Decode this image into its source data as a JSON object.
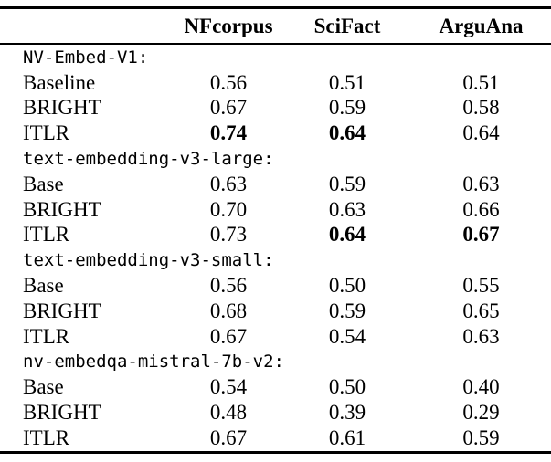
{
  "table": {
    "columns": [
      "",
      "NFcorpus",
      "SciFact",
      "ArguAna"
    ],
    "groups": [
      {
        "name": "NV-Embed-V1:",
        "rows": [
          {
            "label": "Baseline",
            "values": [
              "0.56",
              "0.51",
              "0.51"
            ],
            "bold": [
              false,
              false,
              false
            ]
          },
          {
            "label": "BRIGHT",
            "values": [
              "0.67",
              "0.59",
              "0.58"
            ],
            "bold": [
              false,
              false,
              false
            ]
          },
          {
            "label": "ITLR",
            "values": [
              "0.74",
              "0.64",
              "0.64"
            ],
            "bold": [
              true,
              true,
              false
            ]
          }
        ]
      },
      {
        "name": "text-embedding-v3-large:",
        "rows": [
          {
            "label": "Base",
            "values": [
              "0.63",
              "0.59",
              "0.63"
            ],
            "bold": [
              false,
              false,
              false
            ]
          },
          {
            "label": "BRIGHT",
            "values": [
              "0.70",
              "0.63",
              "0.66"
            ],
            "bold": [
              false,
              false,
              false
            ]
          },
          {
            "label": "ITLR",
            "values": [
              "0.73",
              "0.64",
              "0.67"
            ],
            "bold": [
              false,
              true,
              true
            ]
          }
        ]
      },
      {
        "name": "text-embedding-v3-small:",
        "rows": [
          {
            "label": "Base",
            "values": [
              "0.56",
              "0.50",
              "0.55"
            ],
            "bold": [
              false,
              false,
              false
            ]
          },
          {
            "label": "BRIGHT",
            "values": [
              "0.68",
              "0.59",
              "0.65"
            ],
            "bold": [
              false,
              false,
              false
            ]
          },
          {
            "label": "ITLR",
            "values": [
              "0.67",
              "0.54",
              "0.63"
            ],
            "bold": [
              false,
              false,
              false
            ]
          }
        ]
      },
      {
        "name": "nv-embedqa-mistral-7b-v2:",
        "rows": [
          {
            "label": "Base",
            "values": [
              "0.54",
              "0.50",
              "0.40"
            ],
            "bold": [
              false,
              false,
              false
            ]
          },
          {
            "label": "BRIGHT",
            "values": [
              "0.48",
              "0.39",
              "0.29"
            ],
            "bold": [
              false,
              false,
              false
            ]
          },
          {
            "label": "ITLR",
            "values": [
              "0.67",
              "0.61",
              "0.59"
            ],
            "bold": [
              false,
              false,
              false
            ]
          }
        ]
      }
    ]
  }
}
